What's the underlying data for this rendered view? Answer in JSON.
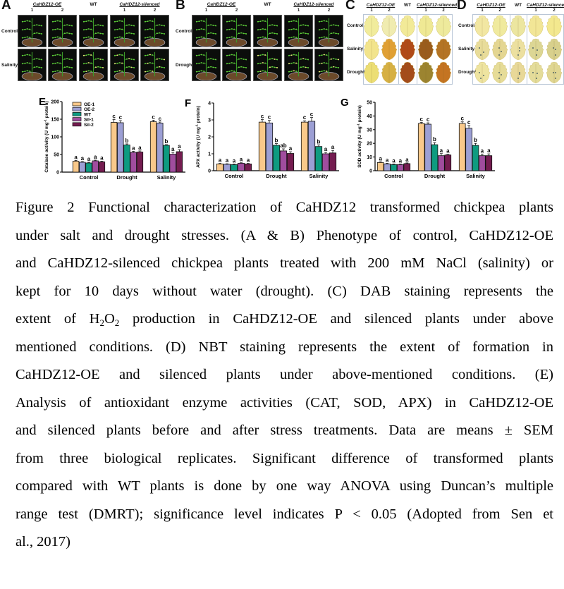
{
  "panels": {
    "A": {
      "letter": "A",
      "groups": [
        "CaHDZ12-OE",
        "WT",
        "CaHDZ12-silenced"
      ],
      "col_numbers": [
        "1",
        "2",
        "1",
        "2"
      ],
      "rows": [
        "Control",
        "Salinity"
      ]
    },
    "B": {
      "letter": "B",
      "groups": [
        "CaHDZ12-OE",
        "WT",
        "CaHDZ12-silenced"
      ],
      "col_numbers": [
        "1",
        "2",
        "1",
        "2"
      ],
      "rows": [
        "Control",
        "Drought"
      ]
    },
    "C": {
      "letter": "C",
      "groups": [
        "CaHDZ12-OE",
        "WT",
        "CaHDZ12-silenced"
      ],
      "col_numbers": [
        "1",
        "2",
        "1",
        "2"
      ],
      "rows": [
        "Control",
        "Salinity",
        "Drought"
      ],
      "leaf_colors": [
        [
          "#f1ec9c",
          "#f0ecb0",
          "#f2ea98",
          "#efe994",
          "#eeea9c"
        ],
        [
          "#f2e48c",
          "#e0a034",
          "#b04a18",
          "#9a5c1c",
          "#b47424"
        ],
        [
          "#ecde74",
          "#d6b044",
          "#a44c1a",
          "#9c8430",
          "#c47422"
        ]
      ]
    },
    "D": {
      "letter": "D",
      "groups": [
        "CaHDZ12-OE",
        "WT",
        "CaHDZ12-silenced"
      ],
      "col_numbers": [
        "1",
        "2",
        "1",
        "2"
      ],
      "rows": [
        "Control",
        "Salinity",
        "Drought"
      ],
      "leaf_colors": [
        [
          "#f2e7a2",
          "#f0ea9e",
          "#ece6a0",
          "#f2e696",
          "#f3e88e"
        ],
        [
          "#e8dc9a",
          "#e4d692",
          "#ece0a0",
          "#dcd694",
          "#d8d08c"
        ],
        [
          "#eee4a0",
          "#e6dc98",
          "#e8d898",
          "#e4dc9a",
          "#e0d692"
        ]
      ]
    }
  },
  "legend": [
    "OE-1",
    "OE-2",
    "WT",
    "Sil-1",
    "Sil-2"
  ],
  "colors": {
    "OE-1": "#f9c98a",
    "OE-2": "#9c9fd4",
    "WT": "#0e9b80",
    "Sil-1": "#a04d9e",
    "Sil-2": "#741c50"
  },
  "chart_data": [
    {
      "panel": "E",
      "type": "bar",
      "ylabel_main": "Catalase activity (U mg",
      "ylabel_sup": "-1",
      "ylabel_end": " protein)",
      "categories": [
        "Control",
        "Drought",
        "Salinity"
      ],
      "ylim": [
        0,
        200
      ],
      "yticks": [
        "0",
        "50",
        "100",
        "150",
        "200"
      ],
      "series": [
        {
          "name": "OE-1",
          "values": [
            31,
            141,
            143
          ],
          "errors": [
            2,
            8,
            4
          ],
          "letters": [
            "a",
            "c",
            "c"
          ]
        },
        {
          "name": "OE-2",
          "values": [
            28,
            140,
            139
          ],
          "errors": [
            2,
            6,
            3
          ],
          "letters": [
            "a",
            "c",
            "c"
          ]
        },
        {
          "name": "WT",
          "values": [
            26,
            77,
            76
          ],
          "errors": [
            2,
            3,
            2
          ],
          "letters": [
            "a",
            "b",
            "b"
          ]
        },
        {
          "name": "Sil-1",
          "values": [
            32,
            56,
            51
          ],
          "errors": [
            2,
            3,
            5
          ],
          "letters": [
            "a",
            "a",
            "a"
          ]
        },
        {
          "name": "Sil-2",
          "values": [
            29,
            57,
            58
          ],
          "errors": [
            2,
            3,
            6
          ],
          "letters": [
            "a",
            "a",
            "a"
          ]
        }
      ]
    },
    {
      "panel": "F",
      "type": "bar",
      "ylabel_main": "APX activity (U mg",
      "ylabel_sup": "-1",
      "ylabel_end": " protein)",
      "categories": [
        "Control",
        "Drought",
        "Salinity"
      ],
      "ylim": [
        0,
        4
      ],
      "yticks": [
        "0",
        "1",
        "2",
        "3",
        "4"
      ],
      "series": [
        {
          "name": "OE-1",
          "values": [
            0.4,
            2.87,
            2.87
          ],
          "errors": [
            0.03,
            0.15,
            0.08
          ],
          "letters": [
            "a",
            "c",
            "c"
          ]
        },
        {
          "name": "OE-2",
          "values": [
            0.38,
            2.82,
            2.92
          ],
          "errors": [
            0.03,
            0.15,
            0.22
          ],
          "letters": [
            "a",
            "c",
            "c"
          ]
        },
        {
          "name": "WT",
          "values": [
            0.36,
            1.5,
            1.43
          ],
          "errors": [
            0.03,
            0.1,
            0.1
          ],
          "letters": [
            "a",
            "b",
            "b"
          ]
        },
        {
          "name": "Sil-1",
          "values": [
            0.44,
            1.17,
            1.0
          ],
          "errors": [
            0.03,
            0.12,
            0.08
          ],
          "letters": [
            "a",
            "ab",
            "a"
          ]
        },
        {
          "name": "Sil-2",
          "values": [
            0.4,
            1.02,
            1.05
          ],
          "errors": [
            0.03,
            0.1,
            0.15
          ],
          "letters": [
            "a",
            "a",
            "a"
          ]
        }
      ]
    },
    {
      "panel": "G",
      "type": "bar",
      "ylabel_main": "SOD activity (U mg",
      "ylabel_sup": "-1",
      "ylabel_end": " protein)",
      "categories": [
        "Control",
        "Drought",
        "Salinity"
      ],
      "ylim": [
        0,
        50
      ],
      "yticks": [
        "0",
        "10",
        "20",
        "30",
        "40",
        "50"
      ],
      "series": [
        {
          "name": "OE-1",
          "values": [
            6,
            34.5,
            34.5
          ],
          "errors": [
            0.5,
            0.8,
            1.2
          ],
          "letters": [
            "a",
            "c",
            "c"
          ]
        },
        {
          "name": "OE-2",
          "values": [
            5,
            34,
            31
          ],
          "errors": [
            0.4,
            1,
            2
          ],
          "letters": [
            "a",
            "c",
            "c"
          ]
        },
        {
          "name": "WT",
          "values": [
            4.5,
            19,
            18.5
          ],
          "errors": [
            0.4,
            1.5,
            1.5
          ],
          "letters": [
            "a",
            "b",
            "b"
          ]
        },
        {
          "name": "Sil-1",
          "values": [
            4.5,
            11,
            11
          ],
          "errors": [
            0.4,
            1.5,
            1.2
          ],
          "letters": [
            "a",
            "a",
            "a"
          ]
        },
        {
          "name": "Sil-2",
          "values": [
            5.2,
            11.5,
            11
          ],
          "errors": [
            0.5,
            0.5,
            1.3
          ],
          "letters": [
            "a",
            "a",
            "a"
          ]
        }
      ]
    }
  ],
  "caption": {
    "lines": [
      "Figure 2 Functional characterization of CaHDZ12 transformed chickpea plants",
      "under salt and drought stresses. (A & B) Phenotype of control, CaHDZ12-OE",
      "and CaHDZ12-silenced chickpea plants treated with 200 mM NaCl (salinity) or",
      "kept for 10 days without water (drought). (C) DAB staining represents the",
      null,
      "mentioned conditions. (D) NBT staining represents the extent of formation in",
      "CaHDZ12-OE and silenced plants under above-mentioned conditions. (E)",
      "Analysis of antioxidant enzyme activities (CAT, SOD, APX) in CaHDZ12-OE",
      "and silenced plants before and after stress treatments. Data are means ± SEM",
      "from three biological replicates. Significant difference of transformed plants",
      "compared with WT plants is done by one way ANOVA using Duncan’s multiple",
      "range test (DMRT); significance level indicates P < 0.05 (Adopted from Sen et",
      "al., 2017)"
    ],
    "line5": {
      "a": "extent of H",
      "sub1": "2",
      "b": "O",
      "sub2": "2",
      "c": " production in CaHDZ12-OE and silenced plants under above"
    }
  }
}
